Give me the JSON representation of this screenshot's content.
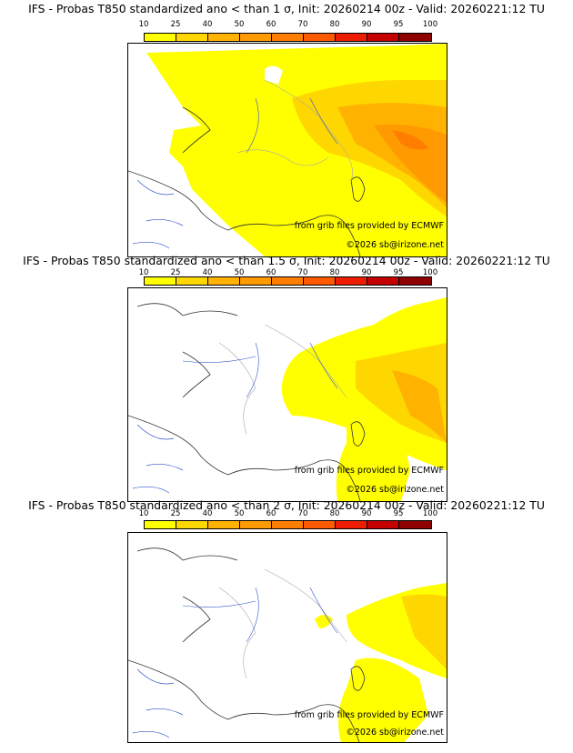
{
  "colorbar": {
    "ticks": [
      "10",
      "25",
      "40",
      "50",
      "60",
      "70",
      "80",
      "90",
      "95",
      "100"
    ],
    "colors": [
      "#ffff00",
      "#ffd700",
      "#ffb300",
      "#ff9a00",
      "#ff7e00",
      "#ff5a00",
      "#ee1c00",
      "#c40000",
      "#8f0000",
      "#5a0000"
    ]
  },
  "panels": [
    {
      "title": "IFS - Probas T850  standardized ano < than 1 σ, Init: 20260214 00z - Valid: 20260221:12 TU",
      "credit_source": "from grib files provided by ECMWF",
      "credit_copyright": "©2026 sb@irizone.net"
    },
    {
      "title": "IFS - Probas T850  standardized ano < than 1.5 σ, Init: 20260214 00z - Valid: 20260221:12 TU",
      "credit_source": "from grib files provided by ECMWF",
      "credit_copyright": "©2026 sb@irizone.net"
    },
    {
      "title": "IFS - Probas T850  standardized ano < than 2 σ, Init: 20260214 00z - Valid: 20260221:12 TU",
      "credit_source": "from grib files provided by ECMWF",
      "credit_copyright": "©2026 sb@irizone.net"
    }
  ]
}
